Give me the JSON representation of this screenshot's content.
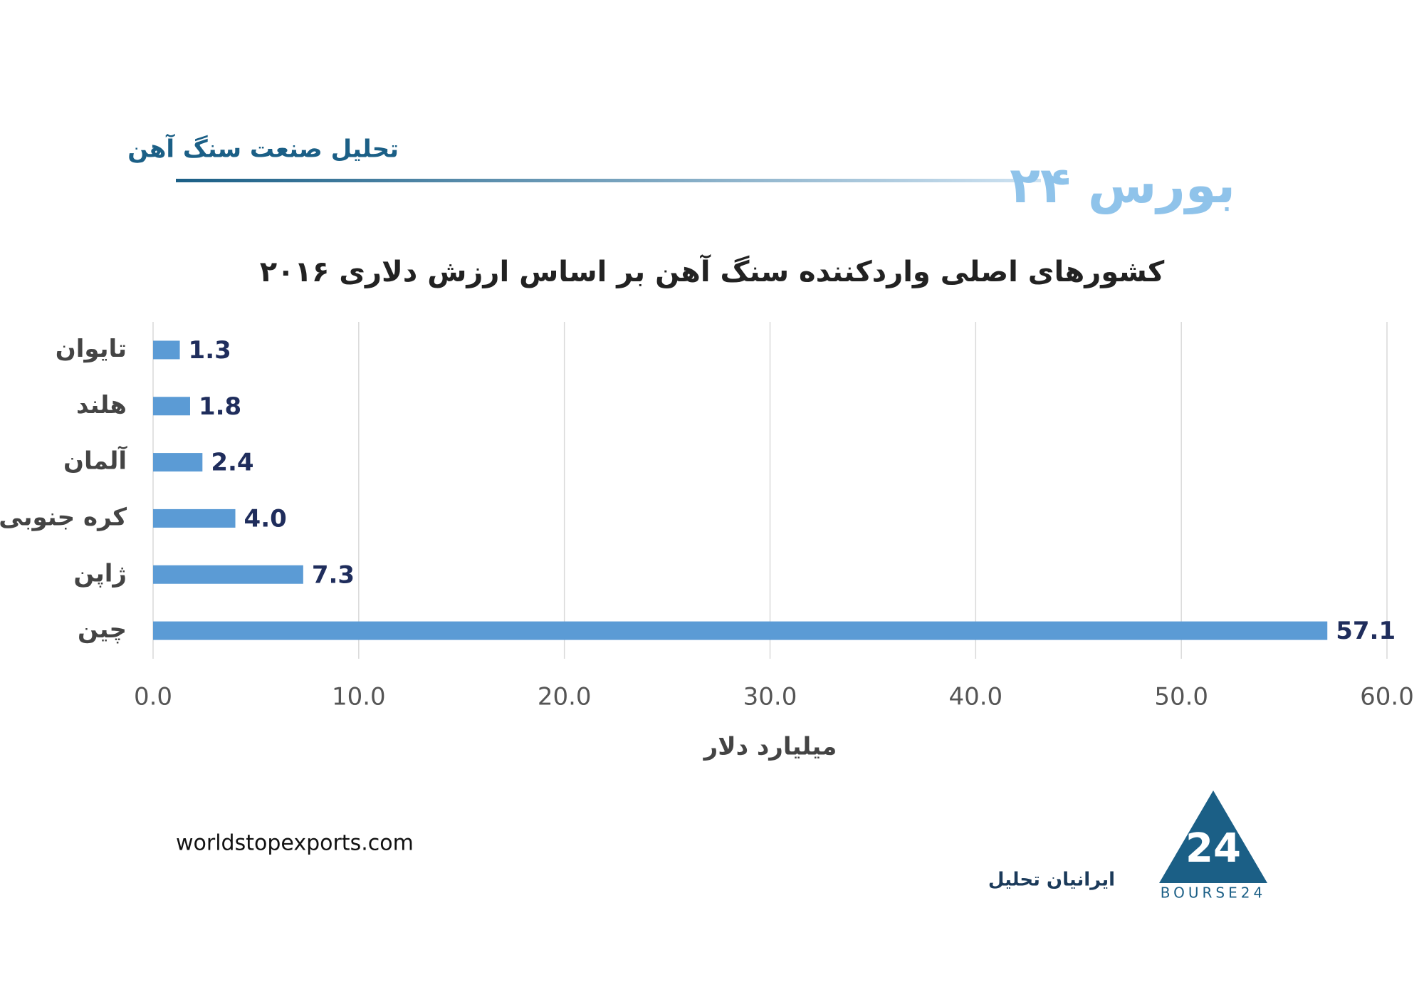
{
  "header": {
    "subtitle": "تحلیل صنعت سنگ آهن",
    "brand": "بورس ۲۴"
  },
  "chart_data": {
    "type": "bar",
    "orientation": "horizontal",
    "title": "کشورهای اصلی واردکننده سنگ آهن بر اساس ارزش دلاری ۲۰۱۶",
    "x_label": "میلیارد دلار",
    "categories": [
      "تایوان",
      "هلند",
      "آلمان",
      "کره جنوبی",
      "ژاپن",
      "چین"
    ],
    "values": [
      1.3,
      1.8,
      2.4,
      4.0,
      7.3,
      57.1
    ],
    "value_labels": [
      "1.3",
      "1.8",
      "2.4",
      "4.0",
      "7.3",
      "57.1"
    ],
    "color": "#5b9bd5",
    "xlim": [
      0,
      60
    ],
    "xticks": [
      {
        "value": 0,
        "label": "0.0"
      },
      {
        "value": 10,
        "label": "10.0"
      },
      {
        "value": 20,
        "label": "20.0"
      },
      {
        "value": 30,
        "label": "30.0"
      },
      {
        "value": 40,
        "label": "40.0"
      },
      {
        "value": 50,
        "label": "50.0"
      },
      {
        "value": 60,
        "label": "60.0"
      }
    ],
    "grid": true
  },
  "footer": {
    "source": "worldstopexports.com",
    "company": "ایرانیان تحلیل",
    "logo_text": "BOURSE24"
  }
}
